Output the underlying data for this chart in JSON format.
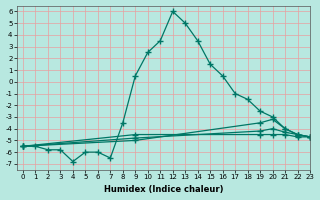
{
  "xlabel": "Humidex (Indice chaleur)",
  "background_color": "#b8e8e0",
  "grid_color": "#e8a0a0",
  "line_color": "#007766",
  "xlim": [
    -0.5,
    23
  ],
  "ylim": [
    -7.5,
    6.5
  ],
  "yticks": [
    -7,
    -6,
    -5,
    -4,
    -3,
    -2,
    -1,
    0,
    1,
    2,
    3,
    4,
    5,
    6
  ],
  "xticks": [
    0,
    1,
    2,
    3,
    4,
    5,
    6,
    7,
    8,
    9,
    10,
    11,
    12,
    13,
    14,
    15,
    16,
    17,
    18,
    19,
    20,
    21,
    22,
    23
  ],
  "series": [
    {
      "x": [
        0,
        1,
        2,
        3,
        4,
        5,
        6,
        7,
        8,
        9,
        10,
        11,
        12,
        13,
        14,
        15,
        16,
        17,
        18,
        19,
        20,
        21,
        22,
        23
      ],
      "y": [
        -5.5,
        -5.5,
        -5.8,
        -5.8,
        -6.8,
        -6.0,
        -6.0,
        -6.5,
        -3.5,
        0.5,
        2.5,
        3.5,
        6.0,
        5.0,
        3.5,
        1.5,
        0.5,
        -1.0,
        -1.5,
        -2.5,
        -3.0,
        -4.0,
        -4.5,
        -4.7
      ]
    },
    {
      "x": [
        0,
        9,
        19,
        20,
        21,
        22,
        23
      ],
      "y": [
        -5.5,
        -5.0,
        -3.5,
        -3.2,
        -4.0,
        -4.5,
        -4.7
      ]
    },
    {
      "x": [
        0,
        9,
        19,
        20,
        21,
        22,
        23
      ],
      "y": [
        -5.5,
        -4.8,
        -4.2,
        -4.0,
        -4.3,
        -4.5,
        -4.7
      ]
    },
    {
      "x": [
        0,
        9,
        19,
        20,
        21,
        22,
        23
      ],
      "y": [
        -5.5,
        -4.5,
        -4.5,
        -4.5,
        -4.5,
        -4.7,
        -4.7
      ]
    }
  ]
}
